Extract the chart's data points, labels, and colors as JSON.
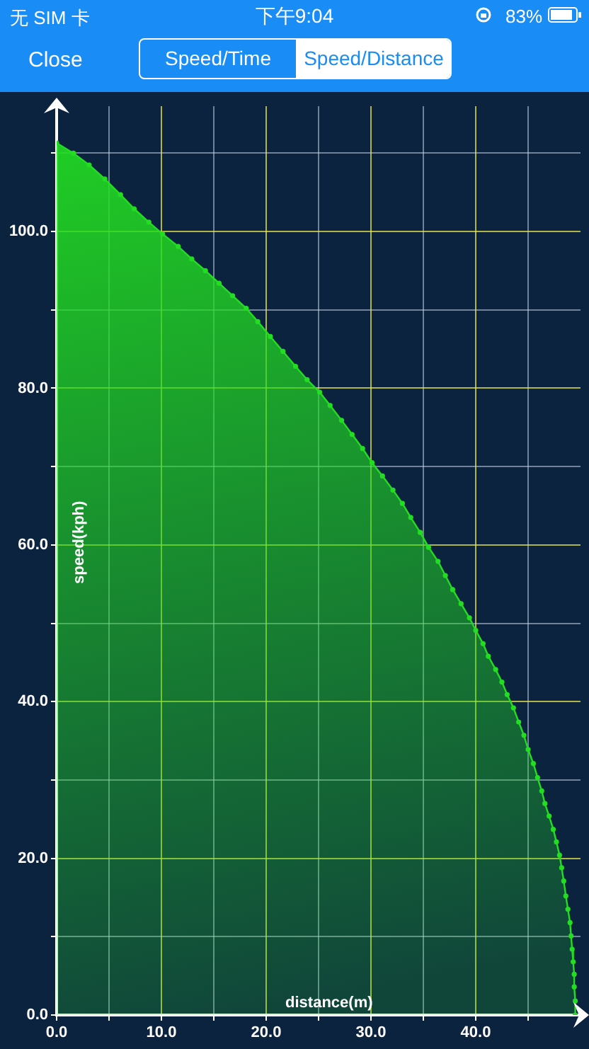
{
  "chart_data": {
    "type": "area",
    "xlabel": "distance(m)",
    "ylabel": "speed(kph)",
    "annotations": [
      "无 SIM 卡",
      "下午9:04",
      "83%",
      "Close",
      "Speed/Time",
      "Speed/Distance"
    ],
    "marker": "circle",
    "grid": true,
    "xlim": [
      0,
      50
    ],
    "ylim": [
      0,
      116
    ],
    "xticks": [
      {
        "value": 0,
        "label": "0.0"
      },
      {
        "value": 5,
        "label": null
      },
      {
        "value": 10,
        "label": "10.0"
      },
      {
        "value": 15,
        "label": null
      },
      {
        "value": 20,
        "label": "20.0"
      },
      {
        "value": 25,
        "label": null
      },
      {
        "value": 30,
        "label": "30.0"
      },
      {
        "value": 35,
        "label": null
      },
      {
        "value": 40,
        "label": "40.0"
      },
      {
        "value": 45,
        "label": null
      }
    ],
    "yticks": [
      {
        "value": 0,
        "label": "0.0"
      },
      {
        "value": 10,
        "label": null
      },
      {
        "value": 20,
        "label": "20.0"
      },
      {
        "value": 30,
        "label": null
      },
      {
        "value": 40,
        "label": "40.0"
      },
      {
        "value": 50,
        "label": null
      },
      {
        "value": 60,
        "label": "60.0"
      },
      {
        "value": 70,
        "label": null
      },
      {
        "value": 80,
        "label": "80.0"
      },
      {
        "value": 90,
        "label": null
      },
      {
        "value": 100,
        "label": "100.0"
      },
      {
        "value": 110,
        "label": null
      }
    ],
    "series": [
      {
        "color": "#22dd22",
        "x": [
          0,
          1.6,
          3.1,
          4.6,
          6.1,
          7.4,
          8.8,
          10.1,
          11.6,
          12.9,
          14.2,
          15.5,
          16.8,
          18.1,
          19.2,
          20.4,
          21.6,
          22.8,
          23.9,
          25.1,
          26.1,
          27.2,
          28.2,
          29.2,
          30.1,
          31.1,
          32.1,
          33.0,
          33.8,
          34.7,
          35.5,
          36.4,
          37.1,
          37.8,
          38.6,
          39.4,
          40.0,
          40.7,
          41.2,
          41.9,
          42.5,
          43.0,
          43.6,
          44.1,
          44.6,
          45.0,
          45.5,
          45.9,
          46.3,
          46.6,
          47.0,
          47.4,
          47.7,
          48.0,
          48.2,
          48.4,
          48.6,
          48.8,
          49.0,
          49.1,
          49.2,
          49.3,
          49.4,
          49.4,
          49.5,
          49.5
        ],
        "values": [
          111.3,
          110.0,
          108.5,
          106.7,
          104.7,
          102.9,
          101.2,
          99.7,
          98.1,
          96.5,
          95.0,
          93.4,
          91.8,
          90.2,
          88.5,
          86.6,
          84.7,
          82.8,
          81.1,
          79.5,
          77.8,
          75.9,
          74.1,
          72.3,
          70.5,
          68.8,
          67.0,
          65.3,
          63.5,
          61.6,
          59.7,
          57.9,
          56.1,
          54.3,
          52.5,
          50.7,
          49.1,
          47.4,
          45.8,
          44.1,
          42.5,
          40.9,
          39.2,
          37.4,
          35.7,
          33.9,
          32.1,
          30.3,
          28.6,
          27.0,
          25.4,
          23.7,
          22.1,
          20.4,
          18.8,
          17.1,
          15.2,
          13.5,
          11.8,
          10.1,
          8.4,
          6.8,
          5.2,
          3.6,
          1.8,
          0
        ]
      }
    ]
  }
}
